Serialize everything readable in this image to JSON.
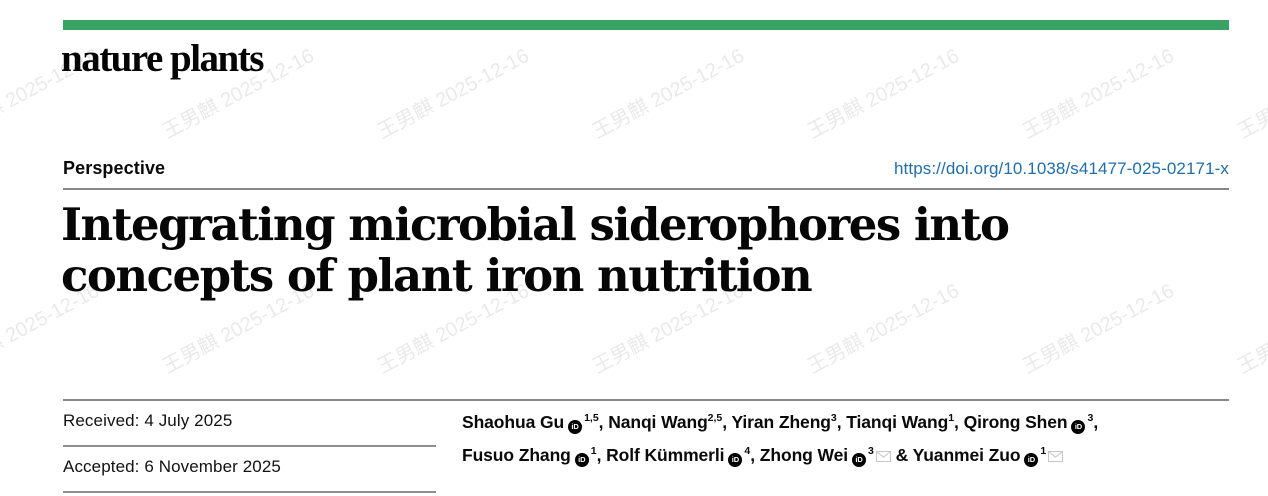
{
  "journal": {
    "logo": "nature plants"
  },
  "article": {
    "type_label": "Perspective",
    "doi": "https://doi.org/10.1038/s41477-025-02171-x",
    "title_line1": "Integrating microbial siderophores into",
    "title_line2": "concepts of plant iron nutrition",
    "received": "Received: 4 July 2025",
    "accepted": "Accepted: 6 November 2025"
  },
  "authors": [
    {
      "name": "Shaohua Gu",
      "orcid": true,
      "sup": "1,5",
      "envelope": false,
      "sep": ", ",
      "line": 1
    },
    {
      "name": "Nanqi Wang",
      "orcid": false,
      "sup": "2,5",
      "envelope": false,
      "sep": ", ",
      "line": 1
    },
    {
      "name": "Yiran Zheng",
      "orcid": false,
      "sup": "3",
      "envelope": false,
      "sep": ", ",
      "line": 1
    },
    {
      "name": "Tianqi Wang",
      "orcid": false,
      "sup": "1",
      "envelope": false,
      "sep": ", ",
      "line": 1
    },
    {
      "name": "Qirong Shen",
      "orcid": true,
      "sup": "3",
      "envelope": false,
      "sep": ",",
      "line": 1
    },
    {
      "name": "Fusuo Zhang",
      "orcid": true,
      "sup": "1",
      "envelope": false,
      "sep": ", ",
      "line": 2
    },
    {
      "name": "Rolf Kümmerli",
      "orcid": true,
      "sup": "4",
      "envelope": false,
      "sep": ", ",
      "line": 2
    },
    {
      "name": "Zhong Wei",
      "orcid": true,
      "sup": "3",
      "envelope": true,
      "sep": " & ",
      "line": 2
    },
    {
      "name": "Yuanmei Zuo",
      "orcid": true,
      "sup": "1",
      "envelope": true,
      "sep": "",
      "line": 2
    }
  ],
  "icons": {
    "orcid_label": "iD"
  },
  "watermark": {
    "text": "王男麒 2025-12-16"
  },
  "colors": {
    "brand_green": "#3aa264",
    "link_blue": "#206eac",
    "rule_gray": "#878787"
  }
}
